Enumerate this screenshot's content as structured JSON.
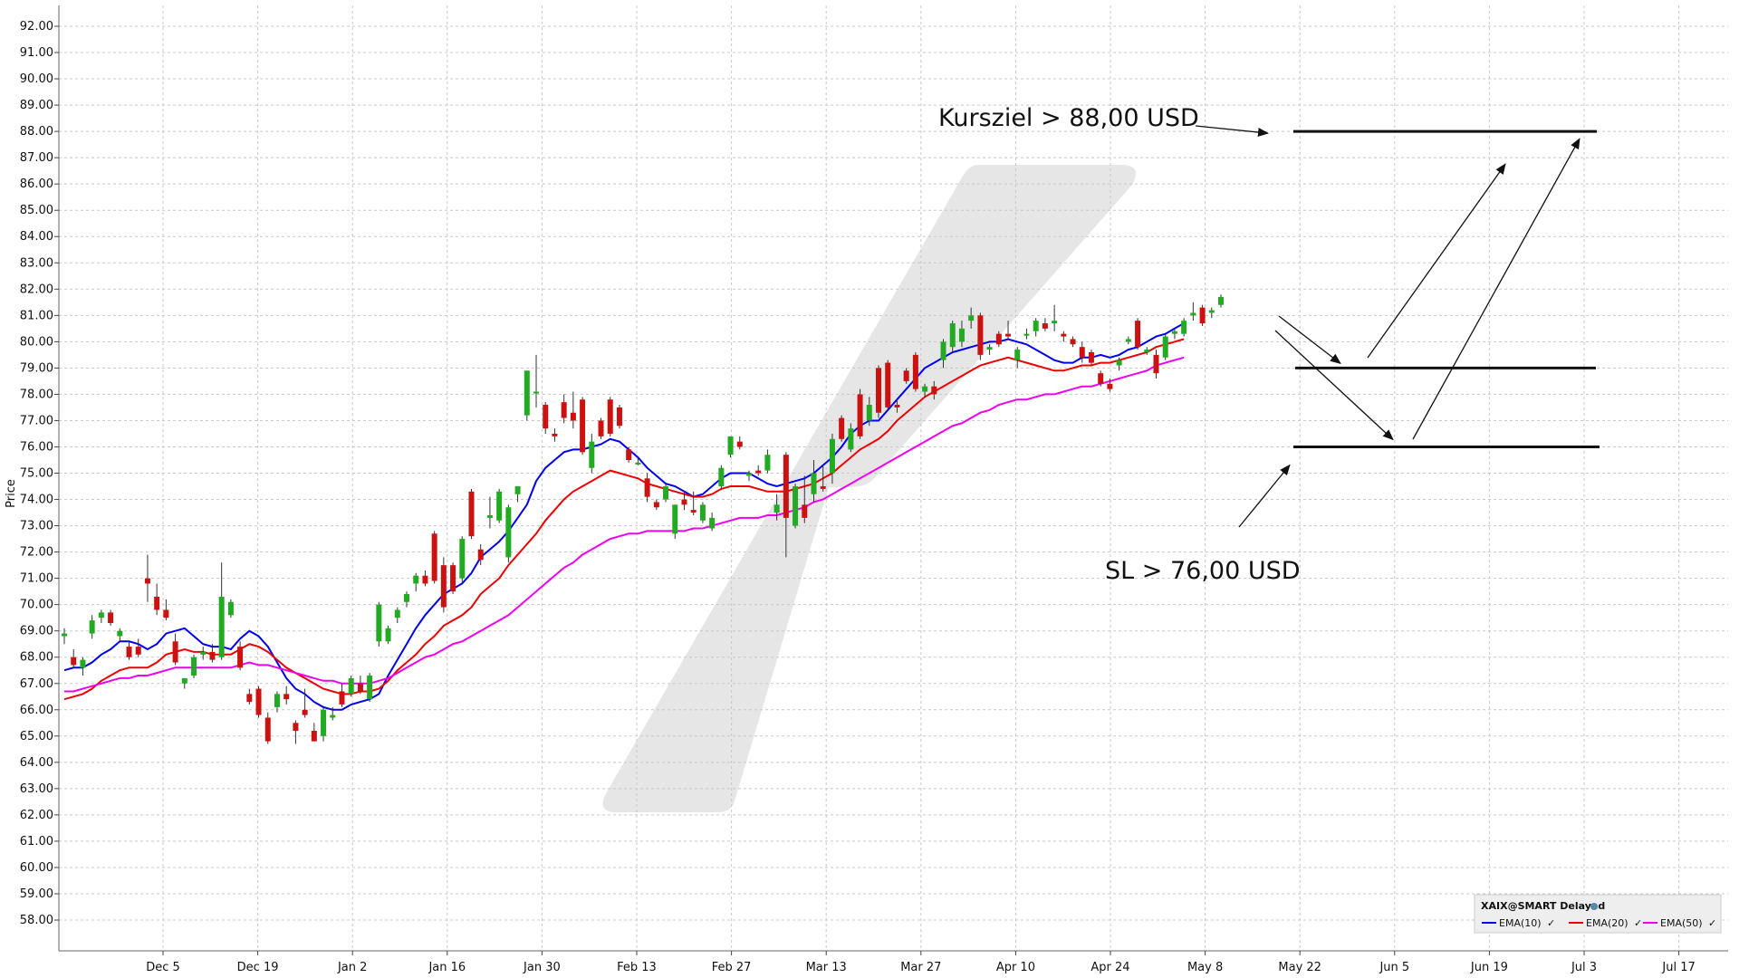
{
  "chart_data": {
    "type": "candlestick",
    "ylabel": "Price",
    "ylim": [
      57,
      92.5
    ],
    "y_ticks": [
      "92.00",
      "91.00",
      "90.00",
      "89.00",
      "88.00",
      "87.00",
      "86.00",
      "85.00",
      "84.00",
      "83.00",
      "82.00",
      "81.00",
      "80.00",
      "79.00",
      "78.00",
      "77.00",
      "76.00",
      "75.00",
      "74.00",
      "73.00",
      "72.00",
      "71.00",
      "70.00",
      "69.00",
      "68.00",
      "67.00",
      "66.00",
      "65.00",
      "64.00",
      "63.00",
      "62.00",
      "61.00",
      "60.00",
      "59.00",
      "58.00"
    ],
    "x_tick_labels": [
      "Dec 5",
      "Dec 19",
      "Jan 2",
      "Jan 16",
      "Jan 30",
      "Feb 13",
      "Feb 27",
      "Mar 13",
      "Mar 27",
      "Apr 10",
      "Apr 24",
      "May 8",
      "May 22",
      "Jun 5",
      "Jun 19",
      "Jul 3",
      "Jul 17"
    ],
    "candles": [
      {
        "o": 68.8,
        "h": 69.1,
        "l": 68.5,
        "c": 68.9
      },
      {
        "o": 68.0,
        "h": 68.3,
        "l": 67.6,
        "c": 67.7
      },
      {
        "o": 67.6,
        "h": 68.0,
        "l": 67.3,
        "c": 67.9
      },
      {
        "o": 68.9,
        "h": 69.6,
        "l": 68.7,
        "c": 69.4
      },
      {
        "o": 69.5,
        "h": 69.8,
        "l": 69.3,
        "c": 69.7
      },
      {
        "o": 69.7,
        "h": 69.8,
        "l": 69.2,
        "c": 69.3
      },
      {
        "o": 68.8,
        "h": 69.1,
        "l": 68.6,
        "c": 69.0
      },
      {
        "o": 68.4,
        "h": 68.6,
        "l": 67.9,
        "c": 68.0
      },
      {
        "o": 68.4,
        "h": 68.7,
        "l": 68.0,
        "c": 68.1
      },
      {
        "o": 71.0,
        "h": 71.9,
        "l": 70.1,
        "c": 70.8
      },
      {
        "o": 70.3,
        "h": 70.8,
        "l": 69.6,
        "c": 69.8
      },
      {
        "o": 69.8,
        "h": 70.2,
        "l": 69.4,
        "c": 69.5
      },
      {
        "o": 68.6,
        "h": 68.9,
        "l": 67.7,
        "c": 67.8
      },
      {
        "o": 67.0,
        "h": 67.2,
        "l": 66.8,
        "c": 67.2
      },
      {
        "o": 67.3,
        "h": 68.1,
        "l": 67.2,
        "c": 68.0
      },
      {
        "o": 68.1,
        "h": 68.4,
        "l": 67.9,
        "c": 68.2
      },
      {
        "o": 68.2,
        "h": 68.5,
        "l": 67.8,
        "c": 67.9
      },
      {
        "o": 68.0,
        "h": 71.6,
        "l": 67.9,
        "c": 70.3
      },
      {
        "o": 69.6,
        "h": 70.2,
        "l": 69.5,
        "c": 70.1
      },
      {
        "o": 68.4,
        "h": 68.6,
        "l": 67.5,
        "c": 67.6
      },
      {
        "o": 66.6,
        "h": 66.8,
        "l": 66.2,
        "c": 66.3
      },
      {
        "o": 66.8,
        "h": 66.9,
        "l": 65.7,
        "c": 65.8
      },
      {
        "o": 65.7,
        "h": 65.9,
        "l": 64.7,
        "c": 64.8
      },
      {
        "o": 66.1,
        "h": 66.7,
        "l": 65.9,
        "c": 66.6
      },
      {
        "o": 66.6,
        "h": 66.9,
        "l": 66.2,
        "c": 66.4
      },
      {
        "o": 65.5,
        "h": 65.6,
        "l": 64.7,
        "c": 65.2
      },
      {
        "o": 66.0,
        "h": 66.8,
        "l": 65.7,
        "c": 65.8
      },
      {
        "o": 65.2,
        "h": 65.5,
        "l": 64.8,
        "c": 64.8
      },
      {
        "o": 65.0,
        "h": 66.1,
        "l": 64.8,
        "c": 66.0
      },
      {
        "o": 65.7,
        "h": 66.1,
        "l": 65.6,
        "c": 65.8
      },
      {
        "o": 66.7,
        "h": 67.0,
        "l": 66.1,
        "c": 66.2
      },
      {
        "o": 66.6,
        "h": 67.3,
        "l": 66.5,
        "c": 67.2
      },
      {
        "o": 67.0,
        "h": 67.3,
        "l": 66.6,
        "c": 66.7
      },
      {
        "o": 66.4,
        "h": 67.4,
        "l": 66.3,
        "c": 67.3
      },
      {
        "o": 68.6,
        "h": 70.1,
        "l": 68.4,
        "c": 70.0
      },
      {
        "o": 68.6,
        "h": 69.2,
        "l": 68.5,
        "c": 69.1
      },
      {
        "o": 69.5,
        "h": 69.9,
        "l": 69.3,
        "c": 69.8
      },
      {
        "o": 70.1,
        "h": 70.5,
        "l": 69.9,
        "c": 70.4
      },
      {
        "o": 70.8,
        "h": 71.2,
        "l": 70.5,
        "c": 71.1
      },
      {
        "o": 71.1,
        "h": 71.3,
        "l": 70.7,
        "c": 70.8
      },
      {
        "o": 72.7,
        "h": 72.8,
        "l": 70.8,
        "c": 70.9
      },
      {
        "o": 71.5,
        "h": 71.8,
        "l": 69.7,
        "c": 69.9
      },
      {
        "o": 71.5,
        "h": 71.6,
        "l": 70.4,
        "c": 70.5
      },
      {
        "o": 71.0,
        "h": 72.6,
        "l": 70.8,
        "c": 72.5
      },
      {
        "o": 74.3,
        "h": 74.4,
        "l": 72.5,
        "c": 72.6
      },
      {
        "o": 72.1,
        "h": 72.3,
        "l": 71.5,
        "c": 71.7
      },
      {
        "o": 73.3,
        "h": 74.1,
        "l": 72.9,
        "c": 73.4
      },
      {
        "o": 73.2,
        "h": 74.4,
        "l": 73.1,
        "c": 74.3
      },
      {
        "o": 71.8,
        "h": 73.8,
        "l": 71.6,
        "c": 73.7
      },
      {
        "o": 74.2,
        "h": 74.5,
        "l": 73.9,
        "c": 74.5
      },
      {
        "o": 77.2,
        "h": 78.9,
        "l": 77.0,
        "c": 78.9
      },
      {
        "o": 78.1,
        "h": 79.5,
        "l": 77.5,
        "c": 78.1
      },
      {
        "o": 77.6,
        "h": 77.7,
        "l": 76.5,
        "c": 76.7
      },
      {
        "o": 76.5,
        "h": 76.7,
        "l": 76.2,
        "c": 76.4
      },
      {
        "o": 77.7,
        "h": 78.0,
        "l": 76.9,
        "c": 77.1
      },
      {
        "o": 77.3,
        "h": 78.1,
        "l": 76.7,
        "c": 77.0
      },
      {
        "o": 77.8,
        "h": 77.9,
        "l": 75.7,
        "c": 75.8
      },
      {
        "o": 75.2,
        "h": 76.5,
        "l": 75.0,
        "c": 76.2
      },
      {
        "o": 77.0,
        "h": 77.1,
        "l": 76.3,
        "c": 76.4
      },
      {
        "o": 77.8,
        "h": 77.9,
        "l": 76.4,
        "c": 76.5
      },
      {
        "o": 77.5,
        "h": 77.6,
        "l": 76.7,
        "c": 76.8
      },
      {
        "o": 75.9,
        "h": 76.0,
        "l": 75.4,
        "c": 75.5
      },
      {
        "o": 75.4,
        "h": 75.6,
        "l": 75.3,
        "c": 75.4
      },
      {
        "o": 74.8,
        "h": 75.0,
        "l": 73.9,
        "c": 74.1
      },
      {
        "o": 73.9,
        "h": 74.0,
        "l": 73.6,
        "c": 73.7
      },
      {
        "o": 74.0,
        "h": 74.6,
        "l": 73.9,
        "c": 74.5
      },
      {
        "o": 72.7,
        "h": 73.8,
        "l": 72.5,
        "c": 73.8
      },
      {
        "o": 74.0,
        "h": 74.3,
        "l": 73.6,
        "c": 73.8
      },
      {
        "o": 73.6,
        "h": 74.3,
        "l": 73.4,
        "c": 73.5
      },
      {
        "o": 73.2,
        "h": 73.9,
        "l": 73.1,
        "c": 73.8
      },
      {
        "o": 72.9,
        "h": 73.5,
        "l": 72.8,
        "c": 73.3
      },
      {
        "o": 74.5,
        "h": 75.3,
        "l": 74.4,
        "c": 75.2
      },
      {
        "o": 75.7,
        "h": 76.4,
        "l": 75.6,
        "c": 76.4
      },
      {
        "o": 76.2,
        "h": 76.4,
        "l": 75.9,
        "c": 76.0
      },
      {
        "o": 74.9,
        "h": 75.1,
        "l": 74.7,
        "c": 75.0
      },
      {
        "o": 75.1,
        "h": 75.3,
        "l": 74.9,
        "c": 75.0
      },
      {
        "o": 75.1,
        "h": 75.9,
        "l": 75.0,
        "c": 75.7
      },
      {
        "o": 73.5,
        "h": 74.2,
        "l": 73.2,
        "c": 73.8
      },
      {
        "o": 75.7,
        "h": 75.8,
        "l": 71.8,
        "c": 73.3
      },
      {
        "o": 73.0,
        "h": 74.6,
        "l": 72.9,
        "c": 74.5
      },
      {
        "o": 73.8,
        "h": 74.9,
        "l": 73.1,
        "c": 73.3
      },
      {
        "o": 74.2,
        "h": 75.5,
        "l": 73.9,
        "c": 75.0
      },
      {
        "o": 74.5,
        "h": 75.3,
        "l": 74.3,
        "c": 74.4
      },
      {
        "o": 75.0,
        "h": 76.5,
        "l": 74.6,
        "c": 76.3
      },
      {
        "o": 77.1,
        "h": 77.2,
        "l": 76.2,
        "c": 76.3
      },
      {
        "o": 75.9,
        "h": 76.9,
        "l": 75.8,
        "c": 76.7
      },
      {
        "o": 78.0,
        "h": 78.2,
        "l": 76.3,
        "c": 76.4
      },
      {
        "o": 77.0,
        "h": 77.9,
        "l": 76.8,
        "c": 77.6
      },
      {
        "o": 79.0,
        "h": 79.1,
        "l": 77.1,
        "c": 77.3
      },
      {
        "o": 79.2,
        "h": 79.3,
        "l": 77.4,
        "c": 77.5
      },
      {
        "o": 77.6,
        "h": 77.8,
        "l": 77.3,
        "c": 77.5
      },
      {
        "o": 78.9,
        "h": 79.0,
        "l": 78.4,
        "c": 78.5
      },
      {
        "o": 79.5,
        "h": 79.6,
        "l": 78.1,
        "c": 78.2
      },
      {
        "o": 78.1,
        "h": 78.4,
        "l": 77.9,
        "c": 78.3
      },
      {
        "o": 78.3,
        "h": 78.5,
        "l": 77.8,
        "c": 78.0
      },
      {
        "o": 79.3,
        "h": 80.1,
        "l": 79.0,
        "c": 80.0
      },
      {
        "o": 79.8,
        "h": 80.8,
        "l": 79.6,
        "c": 80.7
      },
      {
        "o": 80.0,
        "h": 80.8,
        "l": 79.8,
        "c": 80.5
      },
      {
        "o": 80.8,
        "h": 81.3,
        "l": 80.5,
        "c": 81.0
      },
      {
        "o": 81.0,
        "h": 81.1,
        "l": 79.3,
        "c": 79.5
      },
      {
        "o": 79.7,
        "h": 79.9,
        "l": 79.5,
        "c": 79.8
      },
      {
        "o": 80.3,
        "h": 80.4,
        "l": 79.8,
        "c": 79.9
      },
      {
        "o": 80.3,
        "h": 80.8,
        "l": 80.1,
        "c": 80.2
      },
      {
        "o": 79.3,
        "h": 79.8,
        "l": 79.0,
        "c": 79.7
      },
      {
        "o": 80.3,
        "h": 80.5,
        "l": 80.1,
        "c": 80.3
      },
      {
        "o": 80.4,
        "h": 80.9,
        "l": 80.2,
        "c": 80.8
      },
      {
        "o": 80.7,
        "h": 80.9,
        "l": 80.4,
        "c": 80.5
      },
      {
        "o": 80.7,
        "h": 81.4,
        "l": 80.4,
        "c": 80.8
      },
      {
        "o": 80.3,
        "h": 80.4,
        "l": 80.0,
        "c": 80.2
      },
      {
        "o": 80.1,
        "h": 80.2,
        "l": 79.8,
        "c": 79.9
      },
      {
        "o": 79.8,
        "h": 80.0,
        "l": 79.2,
        "c": 79.4
      },
      {
        "o": 79.6,
        "h": 79.7,
        "l": 79.1,
        "c": 79.2
      },
      {
        "o": 78.8,
        "h": 78.9,
        "l": 78.3,
        "c": 78.4
      },
      {
        "o": 78.4,
        "h": 78.6,
        "l": 78.1,
        "c": 78.2
      },
      {
        "o": 79.1,
        "h": 79.4,
        "l": 78.9,
        "c": 79.3
      },
      {
        "o": 80.0,
        "h": 80.2,
        "l": 79.9,
        "c": 80.1
      },
      {
        "o": 80.8,
        "h": 80.9,
        "l": 79.7,
        "c": 79.8
      },
      {
        "o": 79.6,
        "h": 79.8,
        "l": 79.5,
        "c": 79.7
      },
      {
        "o": 79.5,
        "h": 79.7,
        "l": 78.6,
        "c": 78.8
      },
      {
        "o": 79.4,
        "h": 80.3,
        "l": 79.3,
        "c": 80.2
      },
      {
        "o": 80.3,
        "h": 80.5,
        "l": 80.1,
        "c": 80.4
      },
      {
        "o": 80.3,
        "h": 80.9,
        "l": 80.2,
        "c": 80.8
      },
      {
        "o": 81.0,
        "h": 81.5,
        "l": 80.8,
        "c": 81.1
      },
      {
        "o": 81.3,
        "h": 81.4,
        "l": 80.6,
        "c": 80.7
      },
      {
        "o": 81.1,
        "h": 81.3,
        "l": 80.9,
        "c": 81.2
      },
      {
        "o": 81.4,
        "h": 81.8,
        "l": 81.3,
        "c": 81.7
      }
    ],
    "series": [
      {
        "name": "EMA(10)",
        "color": "#0000ee",
        "values": [
          67.5,
          67.6,
          67.6,
          67.8,
          68.1,
          68.3,
          68.6,
          68.6,
          68.5,
          68.3,
          68.5,
          68.9,
          69.0,
          69.1,
          68.8,
          68.5,
          68.4,
          68.4,
          68.3,
          68.7,
          69.0,
          68.8,
          68.4,
          67.8,
          67.2,
          66.8,
          66.6,
          66.3,
          66.1,
          66.0,
          66.0,
          66.2,
          66.3,
          66.4,
          66.6,
          67.3,
          67.9,
          68.5,
          69.1,
          69.6,
          70.0,
          70.4,
          70.6,
          70.8,
          71.2,
          71.8,
          72.1,
          72.4,
          72.8,
          73.3,
          73.8,
          74.7,
          75.2,
          75.5,
          75.8,
          75.9,
          75.9,
          76.0,
          76.1,
          76.3,
          76.2,
          75.9,
          75.6,
          75.2,
          74.9,
          74.6,
          74.5,
          74.3,
          74.1,
          74.2,
          74.5,
          74.8,
          75.0,
          75.0,
          75.0,
          74.8,
          74.6,
          74.5,
          74.6,
          74.7,
          74.8,
          75.0,
          75.3,
          75.6,
          76.0,
          76.5,
          76.8,
          77.0,
          77.0,
          77.4,
          77.8,
          78.2,
          78.6,
          79.0,
          79.2,
          79.4,
          79.6,
          79.7,
          79.8,
          79.9,
          80.0,
          80.0,
          80.1,
          80.0,
          79.9,
          79.7,
          79.5,
          79.3,
          79.2,
          79.2,
          79.4,
          79.4,
          79.5,
          79.4,
          79.5,
          79.7,
          79.8,
          80.0,
          80.2,
          80.3,
          80.5,
          80.7
        ]
      },
      {
        "name": "EMA(20)",
        "color": "#ee0000",
        "values": [
          66.4,
          66.5,
          66.6,
          66.8,
          67.1,
          67.3,
          67.5,
          67.6,
          67.6,
          67.6,
          67.8,
          68.1,
          68.2,
          68.3,
          68.2,
          68.2,
          68.1,
          68.1,
          68.1,
          68.3,
          68.5,
          68.4,
          68.2,
          67.9,
          67.6,
          67.4,
          67.2,
          67.0,
          66.8,
          66.7,
          66.6,
          66.6,
          66.7,
          66.7,
          66.8,
          67.1,
          67.5,
          67.8,
          68.1,
          68.5,
          68.8,
          69.2,
          69.4,
          69.6,
          69.9,
          70.4,
          70.7,
          71.0,
          71.5,
          71.9,
          72.3,
          72.7,
          73.2,
          73.6,
          74.0,
          74.3,
          74.5,
          74.7,
          74.9,
          75.1,
          75.0,
          74.9,
          74.8,
          74.6,
          74.5,
          74.4,
          74.3,
          74.2,
          74.1,
          74.1,
          74.2,
          74.4,
          74.5,
          74.5,
          74.5,
          74.4,
          74.3,
          74.3,
          74.3,
          74.4,
          74.5,
          74.6,
          74.8,
          75.0,
          75.3,
          75.6,
          75.9,
          76.1,
          76.3,
          76.6,
          77.0,
          77.3,
          77.6,
          77.9,
          78.1,
          78.3,
          78.5,
          78.7,
          78.9,
          79.1,
          79.2,
          79.3,
          79.4,
          79.3,
          79.2,
          79.1,
          79.0,
          78.9,
          78.9,
          79.0,
          79.1,
          79.1,
          79.2,
          79.2,
          79.3,
          79.4,
          79.5,
          79.6,
          79.8,
          79.9,
          80.0,
          80.1
        ]
      },
      {
        "name": "EMA(50)",
        "color": "#ee00ee",
        "values": [
          66.7,
          66.7,
          66.8,
          66.9,
          67.0,
          67.1,
          67.2,
          67.2,
          67.3,
          67.3,
          67.4,
          67.5,
          67.6,
          67.6,
          67.6,
          67.6,
          67.6,
          67.6,
          67.6,
          67.7,
          67.8,
          67.7,
          67.7,
          67.6,
          67.5,
          67.4,
          67.3,
          67.2,
          67.1,
          67.1,
          67.0,
          67.0,
          67.0,
          67.0,
          67.1,
          67.2,
          67.4,
          67.6,
          67.8,
          68.0,
          68.1,
          68.3,
          68.5,
          68.6,
          68.8,
          69.0,
          69.2,
          69.4,
          69.6,
          69.9,
          70.2,
          70.5,
          70.8,
          71.1,
          71.4,
          71.6,
          71.9,
          72.1,
          72.3,
          72.5,
          72.6,
          72.7,
          72.7,
          72.8,
          72.8,
          72.8,
          72.8,
          72.8,
          72.9,
          72.9,
          73.0,
          73.1,
          73.2,
          73.3,
          73.3,
          73.3,
          73.4,
          73.4,
          73.5,
          73.6,
          73.7,
          73.9,
          74.0,
          74.2,
          74.4,
          74.6,
          74.8,
          75.0,
          75.2,
          75.4,
          75.6,
          75.8,
          76.0,
          76.2,
          76.4,
          76.6,
          76.8,
          76.9,
          77.1,
          77.3,
          77.4,
          77.6,
          77.7,
          77.8,
          77.8,
          77.9,
          78.0,
          78.0,
          78.1,
          78.2,
          78.3,
          78.3,
          78.4,
          78.5,
          78.6,
          78.7,
          78.8,
          78.9,
          79.1,
          79.2,
          79.3,
          79.4
        ]
      }
    ],
    "horizontal_levels": [
      88.0,
      79.0,
      76.0
    ],
    "annotations": {
      "target": "Kursziel > 88,00 USD",
      "stop_loss": "SL > 76,00 USD"
    },
    "legend": {
      "title": "XAIX@SMART Delayed",
      "items": [
        "EMA(10)",
        "EMA(20)",
        "EMA(50)"
      ],
      "position": "bottom-right"
    },
    "colors": {
      "up": "#22aa22",
      "down": "#cc1111",
      "grid": "#c8c8c8"
    }
  }
}
